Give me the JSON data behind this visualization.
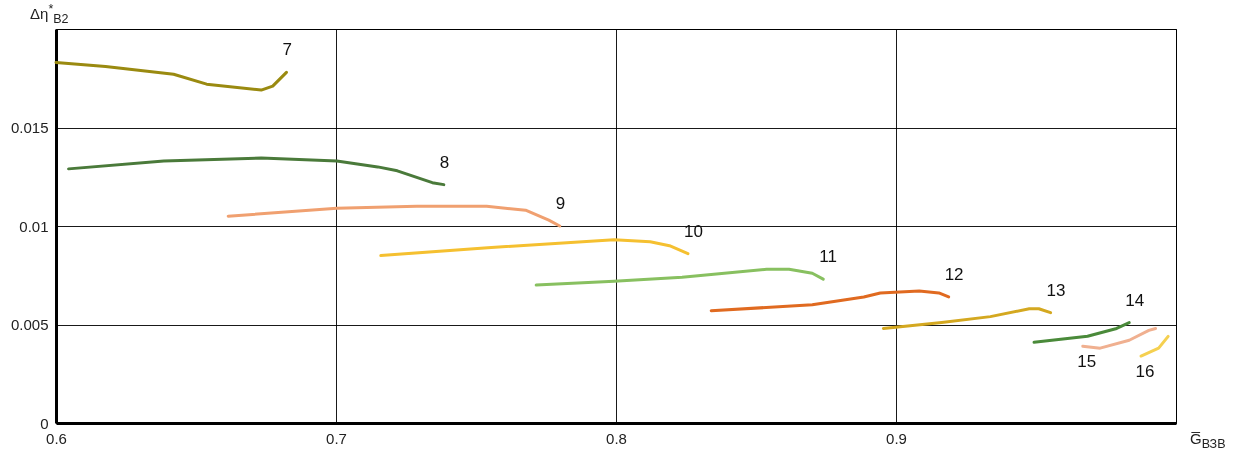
{
  "chart_data": {
    "type": "line",
    "xlabel": "G̅$_{ВЗВ}$",
    "ylabel": "Δη$^{*}$$_{В2}$",
    "xlim": [
      0.6,
      1.0
    ],
    "ylim": [
      0,
      0.02
    ],
    "xticks": [
      0.6,
      0.7,
      0.8,
      0.9,
      {
        "value": 1.0,
        "label": null
      }
    ],
    "yticks": [
      0,
      0.005,
      0.01,
      0.015,
      {
        "value": 0.02,
        "label": null
      }
    ],
    "grid": true,
    "legend": false,
    "series": [
      {
        "name": "7",
        "color": "#9a8a10",
        "x": [
          0.6,
          0.6177,
          0.642,
          0.6538,
          0.6733,
          0.6774,
          0.6823
        ],
        "values": [
          0.0183,
          0.0181,
          0.0177,
          0.0172,
          0.0169,
          0.0171,
          0.0178
        ]
      },
      {
        "name": "8",
        "color": "#4a7a3a",
        "x": [
          0.6045,
          0.6385,
          0.6733,
          0.7003,
          0.7149,
          0.7219,
          0.7344,
          0.7385
        ],
        "values": [
          0.0129,
          0.0133,
          0.01345,
          0.0133,
          0.013,
          0.0128,
          0.0122,
          0.0121
        ]
      },
      {
        "name": "9",
        "color": "#f0a070",
        "x": [
          0.6615,
          0.7003,
          0.7288,
          0.7538,
          0.7677,
          0.776,
          0.7799
        ],
        "values": [
          0.0105,
          0.0109,
          0.011,
          0.011,
          0.0108,
          0.0103,
          0.01
        ]
      },
      {
        "name": "10",
        "color": "#f5c030",
        "x": [
          0.716,
          0.7542,
          0.7993,
          0.8122,
          0.8191,
          0.8257
        ],
        "values": [
          0.0085,
          0.0089,
          0.0093,
          0.0092,
          0.009,
          0.0086
        ]
      },
      {
        "name": "11",
        "color": "#88c060",
        "x": [
          0.7715,
          0.7993,
          0.8236,
          0.8538,
          0.8618,
          0.8701,
          0.874
        ],
        "values": [
          0.007,
          0.0072,
          0.0074,
          0.0078,
          0.0078,
          0.0076,
          0.0073
        ]
      },
      {
        "name": "12",
        "color": "#e06a20",
        "x": [
          0.834,
          0.8701,
          0.8885,
          0.8944,
          0.9083,
          0.9153,
          0.9188
        ],
        "values": [
          0.0057,
          0.006,
          0.0064,
          0.0066,
          0.0067,
          0.0066,
          0.0064
        ]
      },
      {
        "name": "13",
        "color": "#d4a820",
        "x": [
          0.8955,
          0.9163,
          0.9337,
          0.9476,
          0.951,
          0.9552
        ],
        "values": [
          0.0048,
          0.0051,
          0.0054,
          0.0058,
          0.0058,
          0.0056
        ]
      },
      {
        "name": "14",
        "color": "#4a8a3a",
        "x": [
          0.9493,
          0.9684,
          0.9788,
          0.9833
        ],
        "values": [
          0.0041,
          0.0044,
          0.0048,
          0.0051
        ]
      },
      {
        "name": "15",
        "color": "#f0b090",
        "x": [
          0.9667,
          0.9729,
          0.9833,
          0.9903,
          0.9927
        ],
        "values": [
          0.0039,
          0.0038,
          0.0042,
          0.0047,
          0.0048
        ]
      },
      {
        "name": "16",
        "color": "#f5d050",
        "x": [
          0.9875,
          0.9938,
          0.9972
        ],
        "values": [
          0.0034,
          0.0038,
          0.0044
        ]
      }
    ]
  }
}
